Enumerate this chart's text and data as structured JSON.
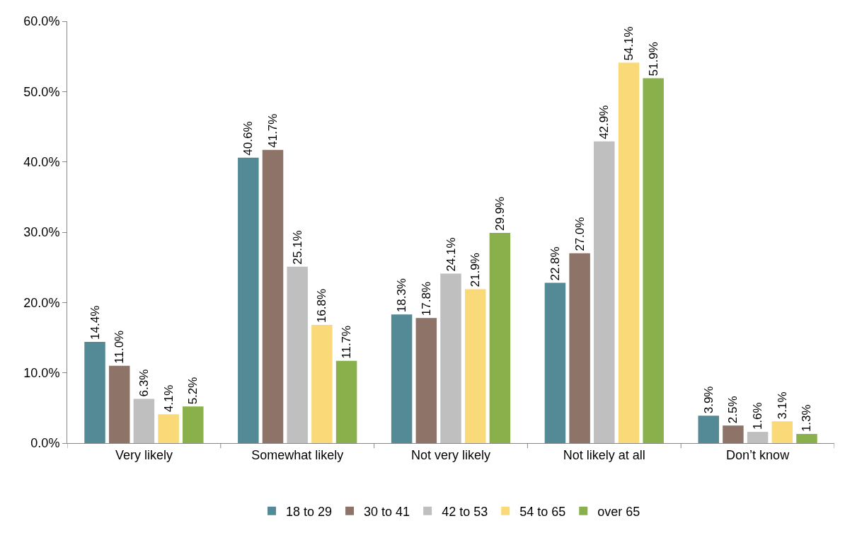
{
  "chart_data": {
    "type": "bar",
    "categories": [
      "Very likely",
      "Somewhat likely",
      "Not very likely",
      "Not likely at all",
      "Don’t know"
    ],
    "series": [
      {
        "name": "18 to 29",
        "color": "#538a96",
        "values": [
          14.4,
          40.6,
          18.3,
          22.8,
          3.9
        ],
        "value_labels": [
          "14.4%",
          "40.6%",
          "18.3%",
          "22.8%",
          "3.9%"
        ]
      },
      {
        "name": "30 to 41",
        "color": "#8e7369",
        "values": [
          11.0,
          41.7,
          17.8,
          27.0,
          2.5
        ],
        "value_labels": [
          "11.0%",
          "41.7%",
          "17.8%",
          "27.0%",
          "2.5%"
        ]
      },
      {
        "name": "42 to 53",
        "color": "#bfbfbf",
        "values": [
          6.3,
          25.1,
          24.1,
          42.9,
          1.6
        ],
        "value_labels": [
          "6.3%",
          "25.1%",
          "24.1%",
          "42.9%",
          "1.6%"
        ]
      },
      {
        "name": "54 to 65",
        "color": "#f9d978",
        "values": [
          4.1,
          16.8,
          21.9,
          54.1,
          3.1
        ],
        "value_labels": [
          "4.1%",
          "16.8%",
          "21.9%",
          "54.1%",
          "3.1%"
        ]
      },
      {
        "name": "over 65",
        "color": "#89b04a",
        "values": [
          5.2,
          11.7,
          29.9,
          51.9,
          1.3
        ],
        "value_labels": [
          "5.2%",
          "11.7%",
          "29.9%",
          "51.9%",
          "1.3%"
        ]
      }
    ],
    "ylim": [
      0,
      60
    ],
    "yticks": [
      {
        "value": 0,
        "label": "0.0%"
      },
      {
        "value": 10,
        "label": "10.0%"
      },
      {
        "value": 20,
        "label": "20.0%"
      },
      {
        "value": 30,
        "label": "30.0%"
      },
      {
        "value": 40,
        "label": "40.0%"
      },
      {
        "value": 50,
        "label": "50.0%"
      },
      {
        "value": 60,
        "label": "60.0%"
      }
    ],
    "legend": "bottom"
  }
}
